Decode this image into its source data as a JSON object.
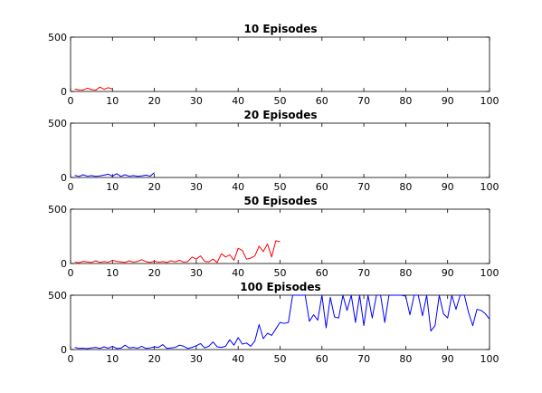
{
  "colors": {
    "red": "#ff0000",
    "blue": "#0000ff"
  },
  "chart_data": [
    {
      "type": "line",
      "title": "10 Episodes",
      "xlim": [
        0,
        100
      ],
      "ylim": [
        0,
        500
      ],
      "xticks": [
        0,
        10,
        20,
        30,
        40,
        50,
        60,
        70,
        80,
        90,
        100
      ],
      "yticks": [
        0,
        500
      ],
      "grid": false,
      "series": [
        {
          "color": "#ff0000",
          "x": [
            1,
            2,
            3,
            4,
            5,
            6,
            7,
            8,
            9,
            10
          ],
          "y": [
            22,
            15,
            14,
            30,
            18,
            12,
            40,
            20,
            35,
            22
          ]
        }
      ]
    },
    {
      "type": "line",
      "title": "20 Episodes",
      "xlim": [
        0,
        100
      ],
      "ylim": [
        0,
        500
      ],
      "xticks": [
        0,
        10,
        20,
        30,
        40,
        50,
        60,
        70,
        80,
        90,
        100
      ],
      "yticks": [
        0,
        500
      ],
      "grid": false,
      "series": [
        {
          "color": "#0000ff",
          "x": [
            1,
            2,
            3,
            4,
            5,
            6,
            7,
            8,
            9,
            10,
            11,
            12,
            13,
            14,
            15,
            16,
            17,
            18,
            19,
            20
          ],
          "y": [
            20,
            10,
            25,
            12,
            18,
            10,
            15,
            22,
            30,
            12,
            35,
            10,
            25,
            12,
            18,
            10,
            15,
            22,
            12,
            45
          ]
        }
      ]
    },
    {
      "type": "line",
      "title": "50 Episodes",
      "xlim": [
        0,
        100
      ],
      "ylim": [
        0,
        500
      ],
      "xticks": [
        0,
        10,
        20,
        30,
        40,
        50,
        60,
        70,
        80,
        90,
        100
      ],
      "yticks": [
        0,
        500
      ],
      "grid": false,
      "series": [
        {
          "color": "#ff0000",
          "x": [
            1,
            2,
            3,
            4,
            5,
            6,
            7,
            8,
            9,
            10,
            11,
            12,
            13,
            14,
            15,
            16,
            17,
            18,
            19,
            20,
            21,
            22,
            23,
            24,
            25,
            26,
            27,
            28,
            29,
            30,
            31,
            32,
            33,
            34,
            35,
            36,
            37,
            38,
            39,
            40,
            41,
            42,
            43,
            44,
            45,
            46,
            47,
            48,
            49,
            50
          ],
          "y": [
            12,
            8,
            20,
            15,
            10,
            25,
            10,
            18,
            12,
            30,
            20,
            15,
            10,
            25,
            12,
            20,
            35,
            18,
            10,
            22,
            12,
            18,
            10,
            25,
            15,
            30,
            12,
            18,
            60,
            40,
            70,
            20,
            15,
            40,
            10,
            90,
            60,
            80,
            30,
            140,
            120,
            40,
            50,
            70,
            160,
            110,
            180,
            60,
            210,
            200
          ]
        }
      ]
    },
    {
      "type": "line",
      "title": "100 Episodes",
      "xlim": [
        0,
        100
      ],
      "ylim": [
        0,
        500
      ],
      "xticks": [
        0,
        10,
        20,
        30,
        40,
        50,
        60,
        70,
        80,
        90,
        100
      ],
      "yticks": [
        0,
        500
      ],
      "grid": false,
      "series": [
        {
          "color": "#0000ff",
          "x": [
            1,
            2,
            3,
            4,
            5,
            6,
            7,
            8,
            9,
            10,
            11,
            12,
            13,
            14,
            15,
            16,
            17,
            18,
            19,
            20,
            21,
            22,
            23,
            24,
            25,
            26,
            27,
            28,
            29,
            30,
            31,
            32,
            33,
            34,
            35,
            36,
            37,
            38,
            39,
            40,
            41,
            42,
            43,
            44,
            45,
            46,
            47,
            48,
            49,
            50,
            51,
            52,
            53,
            54,
            55,
            56,
            57,
            58,
            59,
            60,
            61,
            62,
            63,
            64,
            65,
            66,
            67,
            68,
            69,
            70,
            71,
            72,
            73,
            74,
            75,
            76,
            77,
            78,
            79,
            80,
            81,
            82,
            83,
            84,
            85,
            86,
            87,
            88,
            89,
            90,
            91,
            92,
            93,
            94,
            95,
            96,
            97,
            98,
            99,
            100
          ],
          "y": [
            20,
            10,
            12,
            8,
            15,
            20,
            10,
            25,
            12,
            30,
            10,
            12,
            40,
            15,
            20,
            12,
            30,
            10,
            15,
            25,
            20,
            45,
            10,
            15,
            20,
            40,
            30,
            10,
            20,
            35,
            55,
            15,
            30,
            70,
            25,
            20,
            30,
            90,
            40,
            110,
            50,
            60,
            30,
            80,
            230,
            100,
            150,
            130,
            190,
            250,
            240,
            250,
            500,
            500,
            500,
            500,
            260,
            320,
            270,
            500,
            200,
            480,
            300,
            290,
            500,
            360,
            500,
            250,
            500,
            220,
            500,
            290,
            500,
            500,
            250,
            500,
            500,
            500,
            500,
            490,
            320,
            500,
            500,
            310,
            500,
            170,
            220,
            500,
            330,
            290,
            500,
            370,
            500,
            500,
            340,
            220,
            370,
            360,
            330,
            280
          ]
        }
      ]
    }
  ]
}
